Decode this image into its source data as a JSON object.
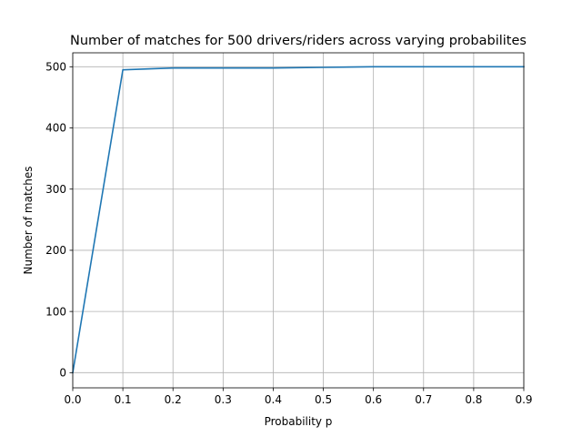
{
  "chart_data": {
    "type": "line",
    "title": "Number of matches for 500 drivers/riders across varying probabilites",
    "xlabel": "Probability p",
    "ylabel": "Number of matches",
    "xlim": [
      0.0,
      0.9
    ],
    "ylim": [
      -24.8,
      522.8
    ],
    "xticks": [
      0.0,
      0.1,
      0.2,
      0.3,
      0.4,
      0.5,
      0.6,
      0.7,
      0.8,
      0.9
    ],
    "xtick_labels": [
      "0.0",
      "0.1",
      "0.2",
      "0.3",
      "0.4",
      "0.5",
      "0.6",
      "0.7",
      "0.8",
      "0.9"
    ],
    "yticks": [
      0,
      100,
      200,
      300,
      400,
      500
    ],
    "ytick_labels": [
      "0",
      "100",
      "200",
      "300",
      "400",
      "500"
    ],
    "grid": true,
    "series": [
      {
        "color": "#1f77b4",
        "x": [
          0.0,
          0.1,
          0.2,
          0.3,
          0.4,
          0.5,
          0.6,
          0.7,
          0.8,
          0.9
        ],
        "y": [
          0,
          495,
          498,
          498,
          498,
          499,
          500,
          500,
          500,
          500
        ]
      }
    ]
  }
}
